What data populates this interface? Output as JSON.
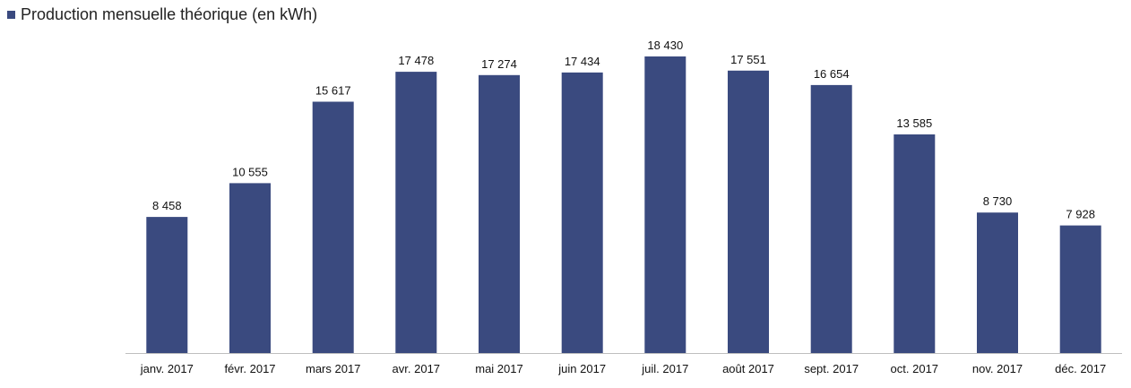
{
  "chart_data": {
    "type": "bar",
    "title": "",
    "xlabel": "",
    "ylabel": "",
    "categories": [
      "janv. 2017",
      "févr. 2017",
      "mars 2017",
      "avr. 2017",
      "mai 2017",
      "juin 2017",
      "juil. 2017",
      "août 2017",
      "sept. 2017",
      "oct. 2017",
      "nov. 2017",
      "déc. 2017"
    ],
    "series": [
      {
        "name": "Production mensuelle théorique (en kWh)",
        "values": [
          8458,
          10555,
          15617,
          17478,
          17274,
          17434,
          18430,
          17551,
          16654,
          13585,
          8730,
          7928
        ],
        "value_labels": [
          "8 458",
          "10 555",
          "15 617",
          "17 478",
          "17 274",
          "17 434",
          "18 430",
          "17 551",
          "16 654",
          "13 585",
          "8 730",
          "7 928"
        ],
        "color": "#3a4a7f"
      }
    ],
    "ylim": [
      0,
      18430
    ],
    "grid": false,
    "legend_position": "top-left",
    "axis_color": "#bfbfbf"
  }
}
